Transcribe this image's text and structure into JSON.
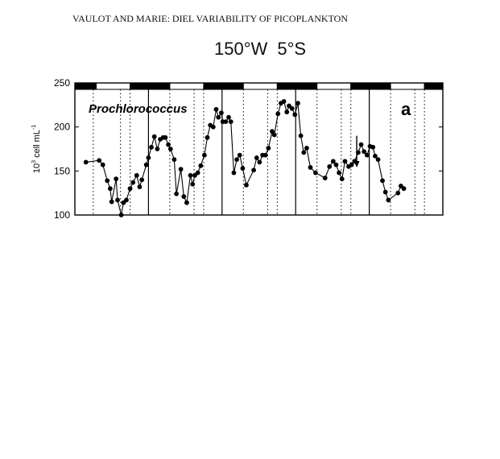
{
  "header": {
    "running_head": "VAULOT AND MARIE: DIEL VARIABILITY OF PICOPLANKTON",
    "station": "150°W  5°S"
  },
  "chart_data": {
    "type": "line",
    "panel_label": "a",
    "series_label": "Prochlorococcus",
    "ylabel_prefix": "10",
    "ylabel_exponent": "3",
    "ylabel_suffix": " cell mL",
    "ylabel_exponent2": "-1",
    "ylim": [
      100,
      250
    ],
    "yticks": [
      100,
      150,
      200,
      250
    ],
    "xlim": [
      0,
      5
    ],
    "day_boundaries": [
      1,
      2,
      3,
      4
    ],
    "light_dark_bar": [
      {
        "start": 0.0,
        "end": 0.29,
        "phase": "dark"
      },
      {
        "start": 0.29,
        "end": 0.75,
        "phase": "light"
      },
      {
        "start": 0.75,
        "end": 1.29,
        "phase": "dark"
      },
      {
        "start": 1.29,
        "end": 1.75,
        "phase": "light"
      },
      {
        "start": 1.75,
        "end": 2.29,
        "phase": "dark"
      },
      {
        "start": 2.29,
        "end": 2.75,
        "phase": "light"
      },
      {
        "start": 2.75,
        "end": 3.29,
        "phase": "dark"
      },
      {
        "start": 3.29,
        "end": 3.75,
        "phase": "light"
      },
      {
        "start": 3.75,
        "end": 4.29,
        "phase": "dark"
      },
      {
        "start": 4.29,
        "end": 4.75,
        "phase": "light"
      },
      {
        "start": 4.75,
        "end": 5.0,
        "phase": "dark"
      }
    ],
    "dotted_lines": [
      0.25,
      0.62,
      0.75,
      1.29,
      1.62,
      1.75,
      2.29,
      2.62,
      2.75,
      3.29,
      3.62,
      3.75,
      4.29,
      4.62,
      4.75
    ],
    "arrow": {
      "x": 3.83,
      "y_top": 190,
      "y_bottom": 154
    },
    "points": [
      [
        0.15,
        160
      ],
      [
        0.33,
        162
      ],
      [
        0.38,
        157
      ],
      [
        0.44,
        139
      ],
      [
        0.48,
        130
      ],
      [
        0.5,
        115
      ],
      [
        0.56,
        141
      ],
      [
        0.58,
        117
      ],
      [
        0.63,
        100
      ],
      [
        0.66,
        114
      ],
      [
        0.7,
        117
      ],
      [
        0.75,
        130
      ],
      [
        0.79,
        137
      ],
      [
        0.84,
        145
      ],
      [
        0.88,
        132
      ],
      [
        0.91,
        140
      ],
      [
        0.97,
        157
      ],
      [
        1.0,
        165
      ],
      [
        1.04,
        177
      ],
      [
        1.08,
        189
      ],
      [
        1.12,
        175
      ],
      [
        1.16,
        186
      ],
      [
        1.2,
        188
      ],
      [
        1.23,
        188
      ],
      [
        1.27,
        180
      ],
      [
        1.3,
        175
      ],
      [
        1.35,
        163
      ],
      [
        1.38,
        124
      ],
      [
        1.44,
        152
      ],
      [
        1.48,
        121
      ],
      [
        1.52,
        114
      ],
      [
        1.57,
        145
      ],
      [
        1.6,
        135
      ],
      [
        1.63,
        145
      ],
      [
        1.67,
        148
      ],
      [
        1.71,
        156
      ],
      [
        1.76,
        168
      ],
      [
        1.8,
        188
      ],
      [
        1.84,
        202
      ],
      [
        1.88,
        200
      ],
      [
        1.92,
        220
      ],
      [
        1.95,
        211
      ],
      [
        1.99,
        216
      ],
      [
        2.01,
        206
      ],
      [
        2.05,
        206
      ],
      [
        2.09,
        211
      ],
      [
        2.12,
        206
      ],
      [
        2.16,
        148
      ],
      [
        2.2,
        163
      ],
      [
        2.24,
        168
      ],
      [
        2.28,
        153
      ],
      [
        2.33,
        134
      ],
      [
        2.43,
        151
      ],
      [
        2.47,
        165
      ],
      [
        2.51,
        160
      ],
      [
        2.55,
        168
      ],
      [
        2.59,
        168
      ],
      [
        2.63,
        176
      ],
      [
        2.68,
        195
      ],
      [
        2.71,
        191
      ],
      [
        2.76,
        215
      ],
      [
        2.8,
        227
      ],
      [
        2.84,
        229
      ],
      [
        2.88,
        217
      ],
      [
        2.91,
        224
      ],
      [
        2.95,
        221
      ],
      [
        2.99,
        214
      ],
      [
        3.03,
        227
      ],
      [
        3.07,
        190
      ],
      [
        3.11,
        171
      ],
      [
        3.15,
        176
      ],
      [
        3.2,
        154
      ],
      [
        3.27,
        148
      ],
      [
        3.4,
        142
      ],
      [
        3.46,
        155
      ],
      [
        3.51,
        161
      ],
      [
        3.55,
        157
      ],
      [
        3.59,
        148
      ],
      [
        3.63,
        141
      ],
      [
        3.67,
        161
      ],
      [
        3.72,
        155
      ],
      [
        3.76,
        157
      ],
      [
        3.8,
        161
      ],
      [
        3.85,
        171
      ],
      [
        3.89,
        180
      ],
      [
        3.93,
        172
      ],
      [
        3.97,
        168
      ],
      [
        4.01,
        178
      ],
      [
        4.05,
        177
      ],
      [
        4.08,
        167
      ],
      [
        4.12,
        163
      ],
      [
        4.18,
        139
      ],
      [
        4.22,
        126
      ],
      [
        4.26,
        117
      ],
      [
        4.39,
        125
      ],
      [
        4.43,
        133
      ],
      [
        4.47,
        130
      ]
    ]
  }
}
